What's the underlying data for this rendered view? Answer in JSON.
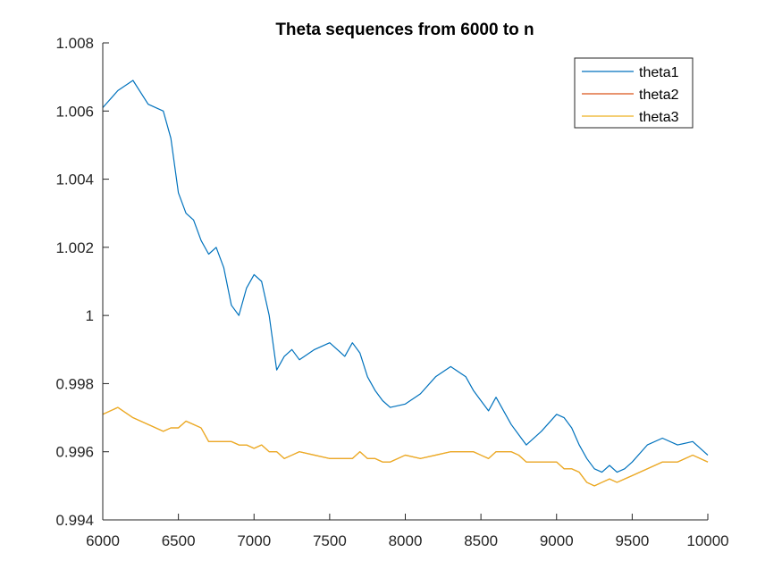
{
  "chart_data": {
    "type": "line",
    "title": "Theta sequences from 6000 to n",
    "xlabel": "",
    "ylabel": "",
    "xlim": [
      6000,
      10000
    ],
    "ylim": [
      0.994,
      1.008
    ],
    "x_ticks": [
      6000,
      6500,
      7000,
      7500,
      8000,
      8500,
      9000,
      9500,
      10000
    ],
    "x_tick_labels": [
      "6000",
      "6500",
      "7000",
      "7500",
      "8000",
      "8500",
      "9000",
      "9500",
      "10000"
    ],
    "y_ticks": [
      0.994,
      0.996,
      0.998,
      1.0,
      1.002,
      1.004,
      1.006,
      1.008
    ],
    "y_tick_labels": [
      "0.994",
      "0.996",
      "0.998",
      "1",
      "1.002",
      "1.004",
      "1.006",
      "1.008"
    ],
    "grid": false,
    "legend_position": "top-right",
    "x": [
      6000,
      6100,
      6200,
      6300,
      6400,
      6450,
      6500,
      6550,
      6600,
      6650,
      6700,
      6750,
      6800,
      6850,
      6900,
      6950,
      7000,
      7050,
      7100,
      7150,
      7200,
      7250,
      7300,
      7400,
      7500,
      7600,
      7650,
      7700,
      7750,
      7800,
      7850,
      7900,
      8000,
      8100,
      8200,
      8300,
      8400,
      8450,
      8500,
      8550,
      8600,
      8650,
      8700,
      8750,
      8800,
      8900,
      9000,
      9050,
      9100,
      9150,
      9200,
      9250,
      9300,
      9350,
      9400,
      9450,
      9500,
      9600,
      9700,
      9800,
      9900,
      10000
    ],
    "series": [
      {
        "name": "theta1",
        "color": "#0072BD",
        "values": [
          1.0061,
          1.0066,
          1.0069,
          1.0062,
          1.006,
          1.0052,
          1.0036,
          1.003,
          1.0028,
          1.0022,
          1.0018,
          1.002,
          1.0014,
          1.0003,
          1.0,
          1.0008,
          1.0012,
          1.001,
          1.0,
          0.9984,
          0.9988,
          0.999,
          0.9987,
          0.999,
          0.9992,
          0.9988,
          0.9992,
          0.9989,
          0.9982,
          0.9978,
          0.9975,
          0.9973,
          0.9974,
          0.9977,
          0.9982,
          0.9985,
          0.9982,
          0.9978,
          0.9975,
          0.9972,
          0.9976,
          0.9972,
          0.9968,
          0.9965,
          0.9962,
          0.9966,
          0.9971,
          0.997,
          0.9967,
          0.9962,
          0.9958,
          0.9955,
          0.9954,
          0.9956,
          0.9954,
          0.9955,
          0.9957,
          0.9962,
          0.9964,
          0.9962,
          0.9963,
          0.9959
        ]
      },
      {
        "name": "theta2",
        "color": "#D95319",
        "values": [
          0.9971,
          0.9973,
          0.997,
          0.9968,
          0.9966,
          0.9967,
          0.9967,
          0.9969,
          0.9968,
          0.9967,
          0.9963,
          0.9963,
          0.9963,
          0.9963,
          0.9962,
          0.9962,
          0.9961,
          0.9962,
          0.996,
          0.996,
          0.9958,
          0.9959,
          0.996,
          0.9959,
          0.9958,
          0.9958,
          0.9958,
          0.996,
          0.9958,
          0.9958,
          0.9957,
          0.9957,
          0.9959,
          0.9958,
          0.9959,
          0.996,
          0.996,
          0.996,
          0.9959,
          0.9958,
          0.996,
          0.996,
          0.996,
          0.9959,
          0.9957,
          0.9957,
          0.9957,
          0.9955,
          0.9955,
          0.9954,
          0.9951,
          0.995,
          0.9951,
          0.9952,
          0.9951,
          0.9952,
          0.9953,
          0.9955,
          0.9957,
          0.9957,
          0.9959,
          0.9957
        ]
      },
      {
        "name": "theta3",
        "color": "#EDB120",
        "values": [
          0.9971,
          0.9973,
          0.997,
          0.9968,
          0.9966,
          0.9967,
          0.9967,
          0.9969,
          0.9968,
          0.9967,
          0.9963,
          0.9963,
          0.9963,
          0.9963,
          0.9962,
          0.9962,
          0.9961,
          0.9962,
          0.996,
          0.996,
          0.9958,
          0.9959,
          0.996,
          0.9959,
          0.9958,
          0.9958,
          0.9958,
          0.996,
          0.9958,
          0.9958,
          0.9957,
          0.9957,
          0.9959,
          0.9958,
          0.9959,
          0.996,
          0.996,
          0.996,
          0.9959,
          0.9958,
          0.996,
          0.996,
          0.996,
          0.9959,
          0.9957,
          0.9957,
          0.9957,
          0.9955,
          0.9955,
          0.9954,
          0.9951,
          0.995,
          0.9951,
          0.9952,
          0.9951,
          0.9952,
          0.9953,
          0.9955,
          0.9957,
          0.9957,
          0.9959,
          0.9957
        ]
      }
    ]
  }
}
